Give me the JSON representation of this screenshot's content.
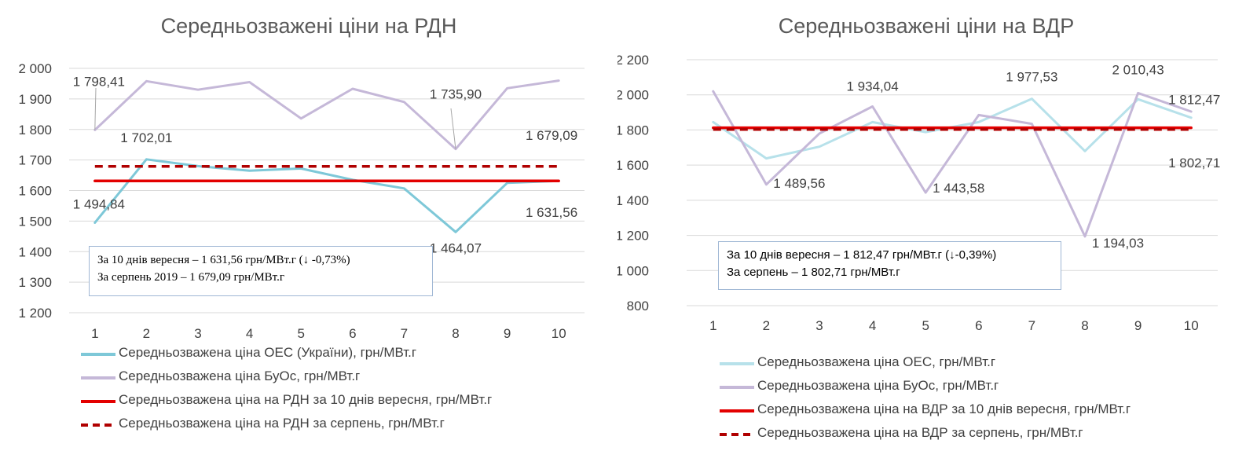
{
  "chart_data": [
    {
      "type": "line",
      "title": "Середньозважені ціни на РДН",
      "xlabel": "",
      "ylabel": "",
      "categories": [
        "1",
        "2",
        "3",
        "4",
        "5",
        "6",
        "7",
        "8",
        "9",
        "10"
      ],
      "ylim": [
        1200,
        2000
      ],
      "yticks": [
        "1 200",
        "1 300",
        "1 400",
        "1 500",
        "1 600",
        "1 700",
        "1 800",
        "1 900",
        "2 000"
      ],
      "grid": true,
      "legend_position": "bottom",
      "series": [
        {
          "name": "Середньозважена ціна ОЕС (України), грн/МВт.г",
          "color": "#7ec8d8",
          "dash": false,
          "values": [
            1494.84,
            1702.01,
            1680,
            1665,
            1672,
            1635,
            1607,
            1464.07,
            1625,
            1631.56
          ]
        },
        {
          "name": "Середньозважена ціна БуОс, грн/МВт.г",
          "color": "#c5b8d8",
          "dash": false,
          "values": [
            1798.41,
            1958,
            1930,
            1955,
            1836,
            1933,
            1890,
            1735.9,
            1935,
            1960
          ]
        },
        {
          "name": "Середньозважена ціна на РДН за 10 днів вересня, грн/МВт.г",
          "color": "#e30000",
          "dash": false,
          "values": [
            1631.56,
            1631.56,
            1631.56,
            1631.56,
            1631.56,
            1631.56,
            1631.56,
            1631.56,
            1631.56,
            1631.56
          ]
        },
        {
          "name": "Середньозважена ціна на РДН за серпень, грн/МВт.г",
          "color": "#b00000",
          "dash": true,
          "values": [
            1679.09,
            1679.09,
            1679.09,
            1679.09,
            1679.09,
            1679.09,
            1679.09,
            1679.09,
            1679.09,
            1679.09
          ]
        }
      ],
      "data_labels": [
        {
          "text": "1 798,41",
          "series": 1,
          "index": 0
        },
        {
          "text": "1 702,01",
          "series": 0,
          "index": 1
        },
        {
          "text": "1 494,84",
          "series": 0,
          "index": 0
        },
        {
          "text": "1 735,90",
          "series": 1,
          "index": 7
        },
        {
          "text": "1 464,07",
          "series": 0,
          "index": 7
        },
        {
          "text": "1 679,09",
          "series": 3,
          "index": 9
        },
        {
          "text": "1 631,56",
          "series": 2,
          "index": 9
        }
      ],
      "note": [
        "За 10 днів вересня – 1 631,56 грн/МВт.г (↓ -0,73%)",
        "За серпень 2019 – 1 679,09 грн/МВт.г"
      ]
    },
    {
      "type": "line",
      "title": "Середньозважені ціни на ВДР",
      "xlabel": "",
      "ylabel": "",
      "categories": [
        "1",
        "2",
        "3",
        "4",
        "5",
        "6",
        "7",
        "8",
        "9",
        "10"
      ],
      "ylim": [
        800,
        2200
      ],
      "yticks": [
        "800",
        "1 000",
        "1 200",
        "1 400",
        "1 600",
        "1 800",
        "2 000",
        "2 200"
      ],
      "grid": true,
      "legend_position": "bottom",
      "series": [
        {
          "name": "Середньозважена ціна ОЕС, грн/МВт.г",
          "color": "#b7e1ea",
          "dash": false,
          "values": [
            1845,
            1638,
            1705,
            1845,
            1788,
            1845,
            1977.53,
            1680,
            1975,
            1870
          ]
        },
        {
          "name": "Середньозважена ціна БуОс, грн/МВт.г",
          "color": "#c5b8d8",
          "dash": false,
          "values": [
            2020,
            1489.56,
            1780,
            1934.04,
            1443.58,
            1885,
            1835,
            1194.03,
            2010.43,
            1905
          ]
        },
        {
          "name": "Середньозважена ціна на ВДР за 10 днів вересня, грн/МВт.г",
          "color": "#e30000",
          "dash": false,
          "values": [
            1812.47,
            1812.47,
            1812.47,
            1812.47,
            1812.47,
            1812.47,
            1812.47,
            1812.47,
            1812.47,
            1812.47
          ]
        },
        {
          "name": "Середньозважена ціна на ВДР за серпень, грн/МВт.г",
          "color": "#b00000",
          "dash": true,
          "values": [
            1802.71,
            1802.71,
            1802.71,
            1802.71,
            1802.71,
            1802.71,
            1802.71,
            1802.71,
            1802.71,
            1802.71
          ]
        }
      ],
      "data_labels": [
        {
          "text": "1 489,56",
          "series": 1,
          "index": 1
        },
        {
          "text": "1 934,04",
          "series": 1,
          "index": 3
        },
        {
          "text": "1 443,58",
          "series": 1,
          "index": 4
        },
        {
          "text": "1 977,53",
          "series": 0,
          "index": 6
        },
        {
          "text": "1 194,03",
          "series": 1,
          "index": 7
        },
        {
          "text": "2 010,43",
          "series": 1,
          "index": 8
        },
        {
          "text": "1 812,47",
          "series": 2,
          "index": 9
        },
        {
          "text": "1 802,71",
          "series": 3,
          "index": 9
        }
      ],
      "note": [
        "За 10 днів вересня – 1 812,47 грн/МВт.г (↓-0,39%)",
        "За серпень – 1 802,71 грн/МВт.г"
      ]
    }
  ]
}
